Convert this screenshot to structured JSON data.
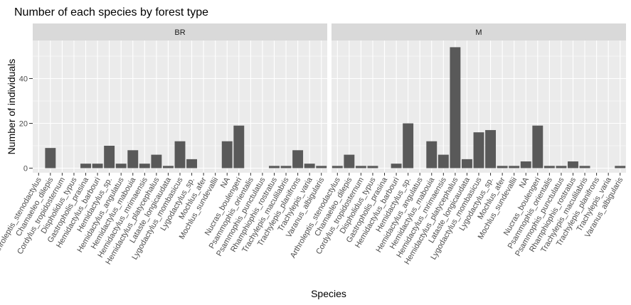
{
  "chart_data": {
    "type": "bar",
    "title": "Number of each species by forest type",
    "xlabel": "Species",
    "ylabel": "Number of individuals",
    "ylim": [
      0,
      57
    ],
    "yticks": [
      0,
      20,
      40
    ],
    "grid": true,
    "colors": {
      "bar": "#595959",
      "panel": "#ebebeb",
      "grid": "#ffffff",
      "strip": "#d9d9d9"
    },
    "categories": [
      "Arthroleptis_stenodactylus",
      "Chamaeleo_dilepis",
      "Cordylus_tropidosternum",
      "Dispholidus_typus",
      "Gastropholis_prasina",
      "Hemidactylus_barbouri",
      "Hemidactylus_sp.",
      "Hemidactylus_angulatus",
      "Hemidactylus_mabouia",
      "Hemidactylus_mrimaensis",
      "Hemidactylus_platycephalus",
      "Lataste_longicaudata",
      "Lygodactylus_mombasicus",
      "Lygodactylus_sp.",
      "Mochlus_afer",
      "Mochlus_sundevallii",
      "NA",
      "Nucras_boulengeri",
      "Psammophis_orientalis",
      "Psammophis_punctulatus",
      "Rhamphiophis_rostratus",
      "Trachylepis_maculilabris",
      "Trachylepis_planifrons",
      "Trachylepis_varia",
      "Varanus_albigularis"
    ],
    "facets": [
      {
        "name": "BR",
        "values": [
          0,
          9,
          0,
          0,
          2,
          2,
          10,
          2,
          8,
          2,
          6,
          1,
          12,
          4,
          0,
          0,
          12,
          19,
          0,
          0,
          1,
          1,
          8,
          2,
          1
        ]
      },
      {
        "name": "M",
        "values": [
          1,
          6,
          1,
          1,
          0,
          2,
          20,
          0,
          12,
          6,
          54,
          4,
          16,
          17,
          1,
          1,
          3,
          19,
          1,
          1,
          3,
          1,
          0,
          0,
          1
        ]
      }
    ]
  }
}
